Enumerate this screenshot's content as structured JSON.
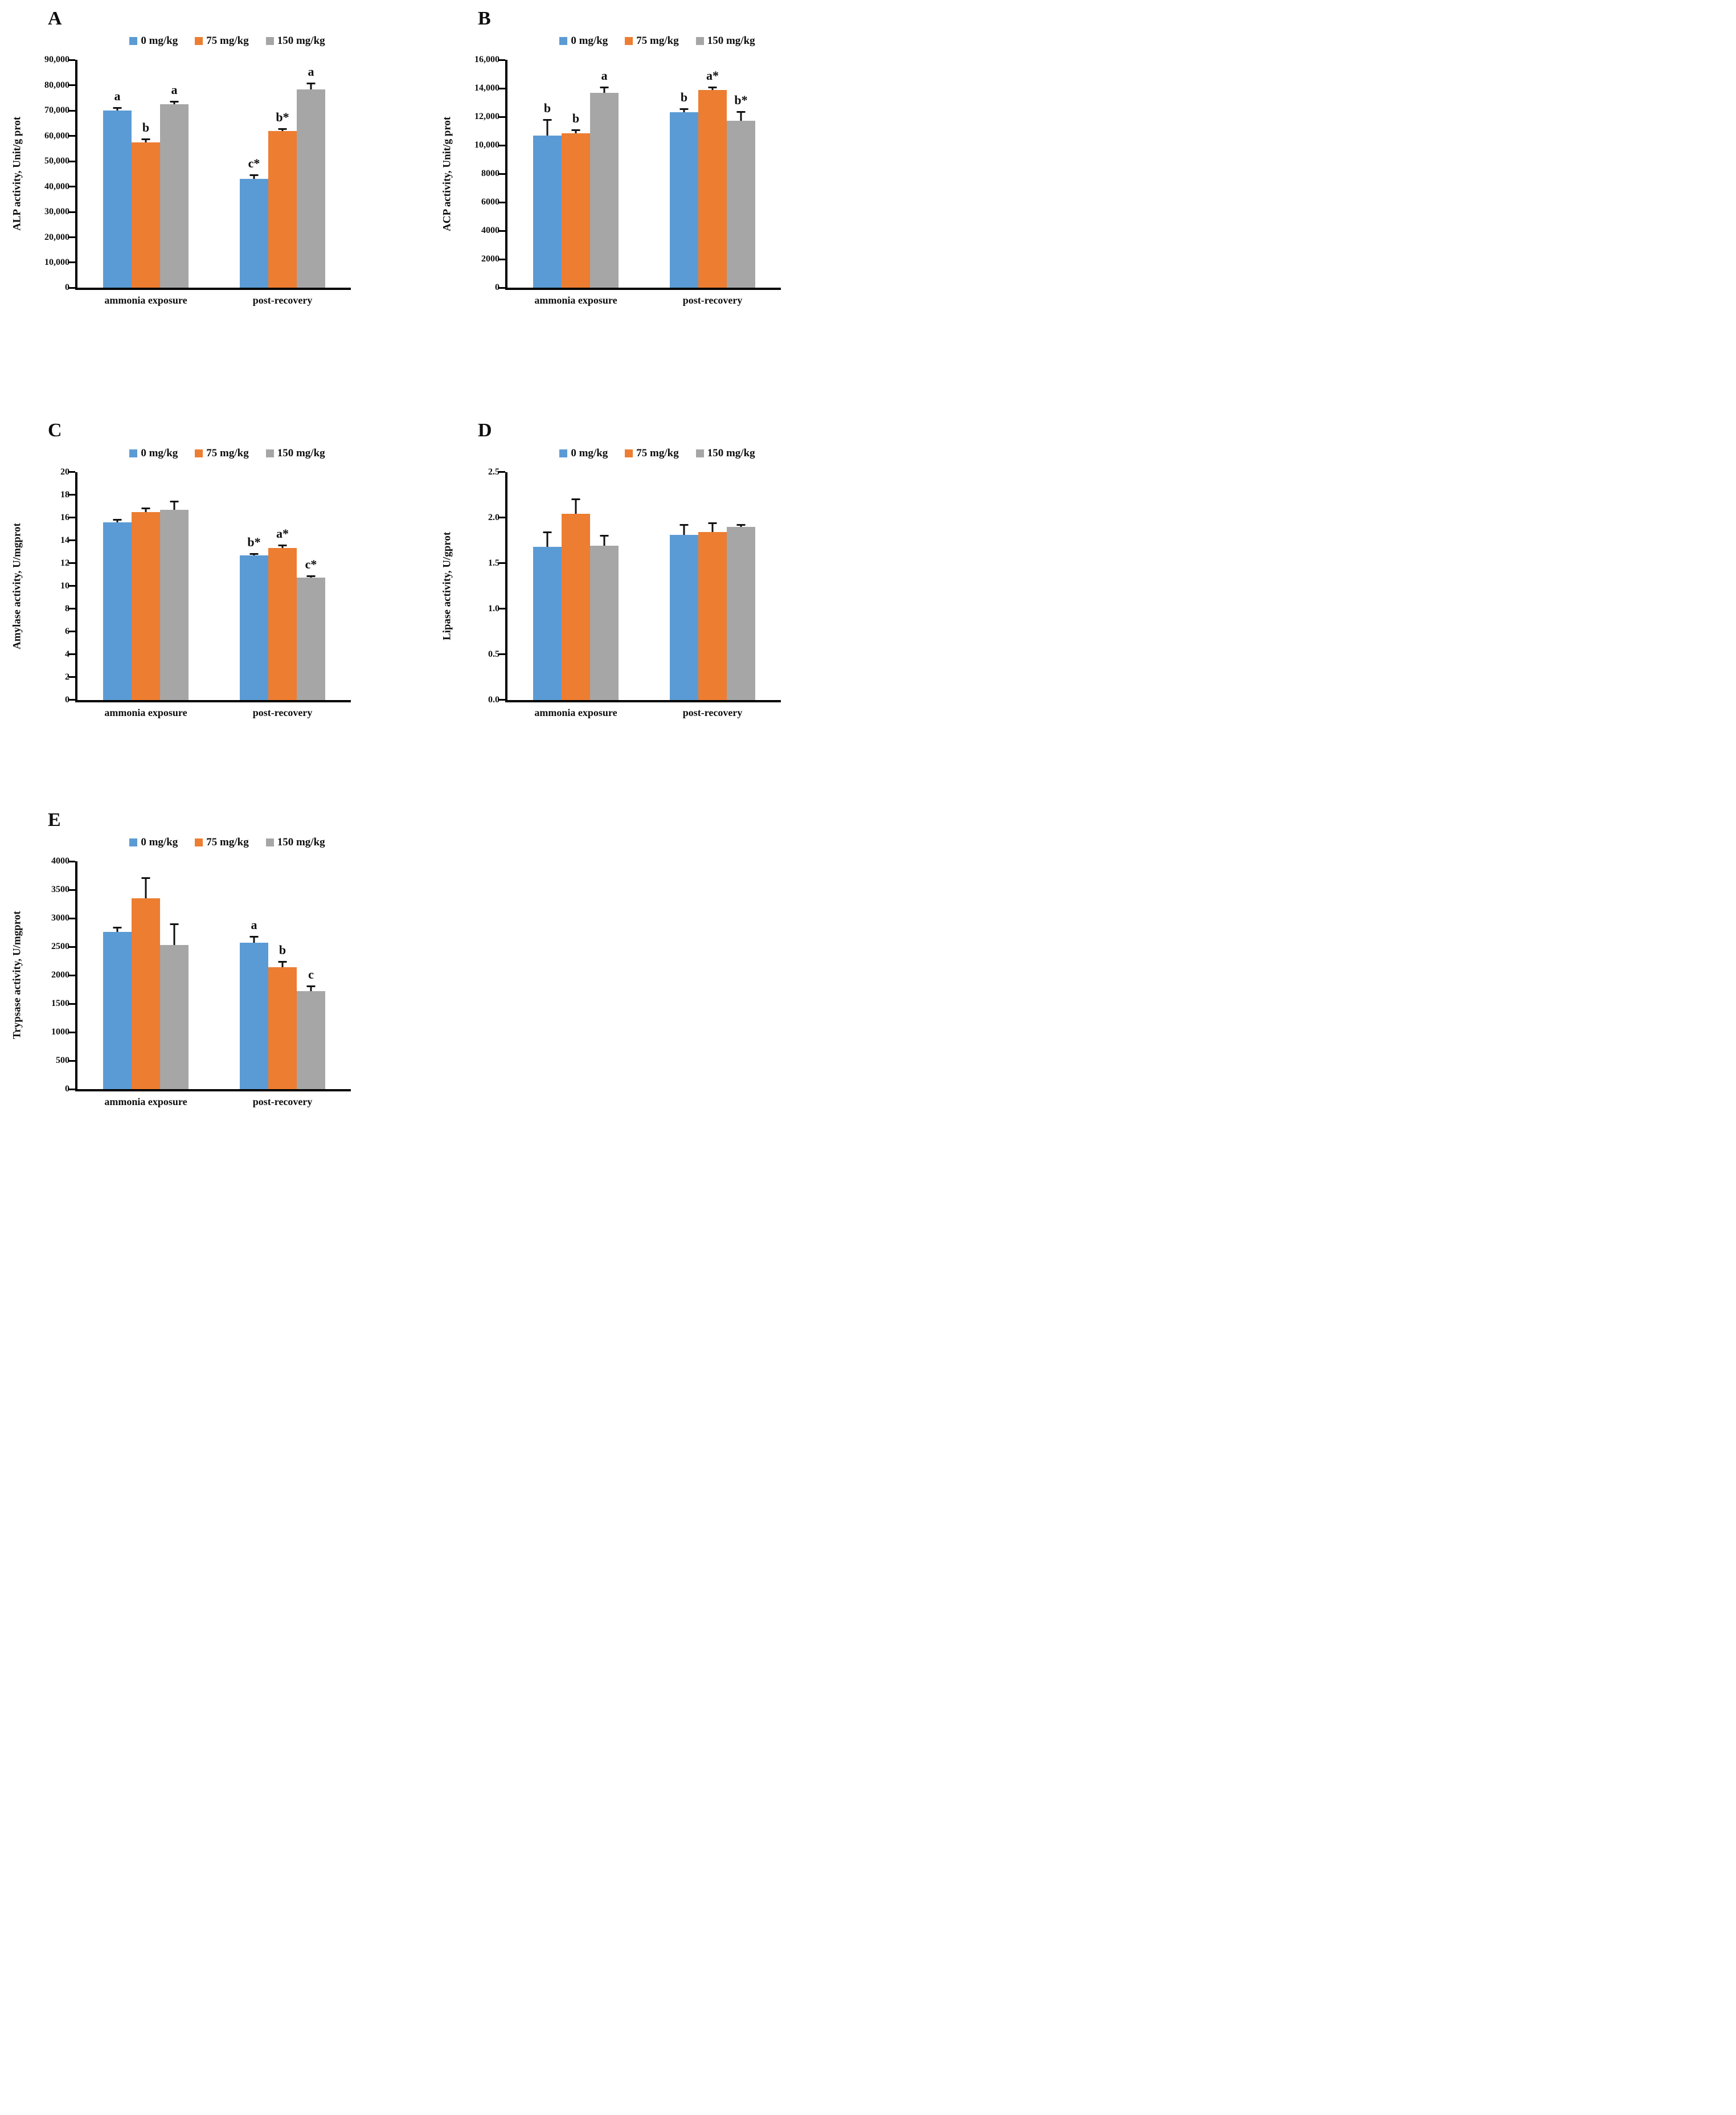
{
  "figure": {
    "background": "#ffffff",
    "series_colors": {
      "blue": "#5B9BD5",
      "orange": "#ED7D31",
      "gray": "#A6A6A6"
    },
    "legend_labels": [
      "0 mg/kg",
      "75 mg/kg",
      "150 mg/kg"
    ],
    "categories": [
      "ammonia exposure",
      "post-recovery"
    ]
  },
  "chart_data": [
    {
      "type": "bar",
      "panel": "A",
      "ylabel": "ALP activity, Unit/g prot",
      "ylim": [
        0,
        90000
      ],
      "ytick_labels": [
        "0",
        "10,000",
        "20,000",
        "30,000",
        "40,000",
        "50,000",
        "60,000",
        "70,000",
        "80,000",
        "90,000"
      ],
      "categories": [
        "ammonia exposure",
        "post-recovery"
      ],
      "legend_position": "top",
      "grid": false,
      "series": [
        {
          "name": "0 mg/kg",
          "color": "#5B9BD5",
          "values": [
            70000,
            43000
          ],
          "errors": [
            1500,
            1800
          ],
          "letters": [
            "a",
            "c*"
          ]
        },
        {
          "name": "75 mg/kg",
          "color": "#ED7D31",
          "values": [
            57500,
            62000
          ],
          "errors": [
            1500,
            1200
          ],
          "letters": [
            "b",
            "b*"
          ]
        },
        {
          "name": "150 mg/kg",
          "color": "#A6A6A6",
          "values": [
            72500,
            78500
          ],
          "errors": [
            1300,
            2500
          ],
          "letters": [
            "a",
            "a"
          ]
        }
      ]
    },
    {
      "type": "bar",
      "panel": "B",
      "ylabel": "ACP activity, Unit/g prot",
      "ylim": [
        0,
        16000
      ],
      "ytick_labels": [
        "0",
        "2000",
        "4000",
        "6000",
        "8000",
        "10,000",
        "12,000",
        "14,000",
        "16,000"
      ],
      "categories": [
        "ammonia exposure",
        "post-recovery"
      ],
      "legend_position": "top",
      "grid": false,
      "series": [
        {
          "name": "0 mg/kg",
          "color": "#5B9BD5",
          "values": [
            10700,
            12350
          ],
          "errors": [
            1150,
            250
          ],
          "letters": [
            "b",
            "b"
          ]
        },
        {
          "name": "75 mg/kg",
          "color": "#ED7D31",
          "values": [
            10850,
            13900
          ],
          "errors": [
            300,
            250
          ],
          "letters": [
            "b",
            "a*"
          ]
        },
        {
          "name": "150 mg/kg",
          "color": "#A6A6A6",
          "values": [
            13700,
            11750
          ],
          "errors": [
            450,
            650
          ],
          "letters": [
            "a",
            "b*"
          ]
        }
      ]
    },
    {
      "type": "bar",
      "panel": "C",
      "ylabel": "Amylase activity, U/mgprot",
      "ylim": [
        0,
        20
      ],
      "ytick_labels": [
        "0",
        "2",
        "4",
        "6",
        "8",
        "10",
        "12",
        "14",
        "16",
        "18",
        "20"
      ],
      "categories": [
        "ammonia exposure",
        "post-recovery"
      ],
      "legend_position": "top",
      "grid": false,
      "series": [
        {
          "name": "0 mg/kg",
          "color": "#5B9BD5",
          "values": [
            15.6,
            12.7
          ],
          "errors": [
            0.3,
            0.2
          ],
          "letters": [
            "",
            "b*"
          ]
        },
        {
          "name": "75 mg/kg",
          "color": "#ED7D31",
          "values": [
            16.5,
            13.35
          ],
          "errors": [
            0.4,
            0.3
          ],
          "letters": [
            "",
            "a*"
          ]
        },
        {
          "name": "150 mg/kg",
          "color": "#A6A6A6",
          "values": [
            16.7,
            10.75
          ],
          "errors": [
            0.8,
            0.2
          ],
          "letters": [
            "",
            "c*"
          ]
        }
      ]
    },
    {
      "type": "bar",
      "panel": "D",
      "ylabel": "Lipase activity, U/gprot",
      "ylim": [
        0,
        2.5
      ],
      "ytick_labels": [
        "0.0",
        "0.5",
        "1.0",
        "1.5",
        "2.0",
        "2.5"
      ],
      "categories": [
        "ammonia exposure",
        "post-recovery"
      ],
      "legend_position": "top",
      "grid": false,
      "series": [
        {
          "name": "0 mg/kg",
          "color": "#5B9BD5",
          "values": [
            1.68,
            1.81
          ],
          "errors": [
            0.17,
            0.12
          ],
          "letters": [
            "",
            ""
          ]
        },
        {
          "name": "75 mg/kg",
          "color": "#ED7D31",
          "values": [
            2.04,
            1.84
          ],
          "errors": [
            0.17,
            0.11
          ],
          "letters": [
            "",
            ""
          ]
        },
        {
          "name": "150 mg/kg",
          "color": "#A6A6A6",
          "values": [
            1.69,
            1.9
          ],
          "errors": [
            0.12,
            0.03
          ],
          "letters": [
            "",
            ""
          ]
        }
      ]
    },
    {
      "type": "bar",
      "panel": "E",
      "ylabel": "Trypsase activity, U/mgprot",
      "ylim": [
        0,
        4000
      ],
      "ytick_labels": [
        "0",
        "500",
        "1000",
        "1500",
        "2000",
        "2500",
        "3000",
        "3500",
        "4000"
      ],
      "categories": [
        "ammonia exposure",
        "post-recovery"
      ],
      "legend_position": "top",
      "grid": false,
      "series": [
        {
          "name": "0 mg/kg",
          "color": "#5B9BD5",
          "values": [
            2760,
            2570
          ],
          "errors": [
            90,
            120
          ],
          "letters": [
            "",
            "a"
          ]
        },
        {
          "name": "75 mg/kg",
          "color": "#ED7D31",
          "values": [
            3350,
            2140
          ],
          "errors": [
            370,
            110
          ],
          "letters": [
            "",
            "b"
          ]
        },
        {
          "name": "150 mg/kg",
          "color": "#A6A6A6",
          "values": [
            2530,
            1720
          ],
          "errors": [
            380,
            100
          ],
          "letters": [
            "",
            "c"
          ]
        }
      ]
    }
  ]
}
